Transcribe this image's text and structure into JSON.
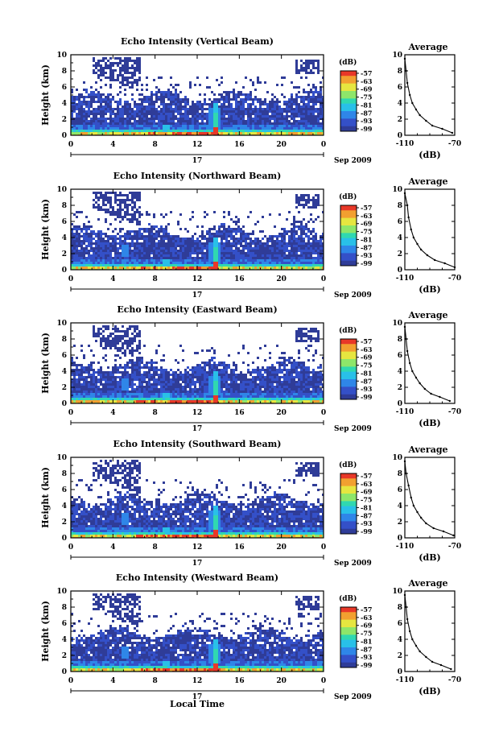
{
  "chart_data": {
    "type": "heatmap",
    "x_label": "Local Time",
    "date_day": "17",
    "date_month_year": "Sep 2009",
    "xlim": [
      0,
      24
    ],
    "ylim": [
      0,
      10
    ],
    "x_ticks": [
      "0",
      "4",
      "8",
      "12",
      "16",
      "20",
      "0"
    ],
    "y_ticks": [
      "0",
      "2",
      "4",
      "6",
      "8",
      "10"
    ],
    "y_label": "Height (km)",
    "colorbar_unit": "(dB)",
    "colorbar_ticks": [
      "-57",
      "-63",
      "-69",
      "-75",
      "-81",
      "-87",
      "-93",
      "-99"
    ],
    "colors": {
      "scale": [
        "#2f3c98",
        "#3450c8",
        "#2f86e8",
        "#29c0e8",
        "#30d8b0",
        "#8ee66a",
        "#e6e640",
        "#f2a030",
        "#e83828"
      ]
    },
    "panels": [
      {
        "title": "Echo Intensity (Vertical Beam)",
        "side_title": "Average",
        "side_x_ticks": [
          "-110",
          "-70"
        ],
        "side_x_label": "(dB)",
        "profile_height_km": [
          0.3,
          0.8,
          1.2,
          1.8,
          2.5,
          3.2,
          4.0,
          5.0,
          6.5,
          8.0,
          9.5
        ],
        "profile_db": [
          -72,
          -80,
          -88,
          -93,
          -98,
          -101,
          -104,
          -106,
          -108,
          -109,
          -110
        ]
      },
      {
        "title": "Echo Intensity (Northward Beam)",
        "side_title": "Average",
        "side_x_ticks": [
          "-110",
          "-70"
        ],
        "side_x_label": "(dB)",
        "profile_height_km": [
          0.3,
          0.8,
          1.2,
          1.8,
          2.5,
          3.2,
          4.0,
          5.0,
          6.5,
          8.0,
          9.5
        ],
        "profile_db": [
          -70,
          -78,
          -86,
          -92,
          -97,
          -100,
          -103,
          -105,
          -107,
          -108,
          -110
        ]
      },
      {
        "title": "Echo Intensity (Eastward Beam)",
        "side_title": "Average",
        "side_x_ticks": [
          "-110",
          "-70"
        ],
        "side_x_label": "(dB)",
        "profile_height_km": [
          0.3,
          0.8,
          1.2,
          1.8,
          2.5,
          3.2,
          4.0,
          5.0,
          6.5,
          8.0,
          9.5
        ],
        "profile_db": [
          -74,
          -82,
          -89,
          -94,
          -98,
          -101,
          -104,
          -106,
          -108,
          -109,
          -110
        ]
      },
      {
        "title": "Echo Intensity (Southward Beam)",
        "side_title": "Average",
        "side_x_ticks": [
          "-110",
          "-70"
        ],
        "side_x_label": "(dB)",
        "profile_height_km": [
          0.3,
          0.8,
          1.2,
          1.8,
          2.5,
          3.2,
          4.0,
          5.0,
          6.5,
          8.0,
          9.5
        ],
        "profile_db": [
          -71,
          -79,
          -87,
          -93,
          -97,
          -100,
          -103,
          -105,
          -107,
          -109,
          -110
        ]
      },
      {
        "title": "Echo Intensity (Westward Beam)",
        "side_title": "Average",
        "side_x_ticks": [
          "-110",
          "-70"
        ],
        "side_x_label": "(dB)",
        "profile_height_km": [
          0.3,
          0.8,
          1.2,
          1.8,
          2.5,
          3.2,
          4.0,
          5.0,
          6.5,
          8.0,
          9.5
        ],
        "profile_db": [
          -73,
          -81,
          -88,
          -93,
          -98,
          -101,
          -104,
          -106,
          -108,
          -109,
          -110
        ]
      }
    ]
  }
}
